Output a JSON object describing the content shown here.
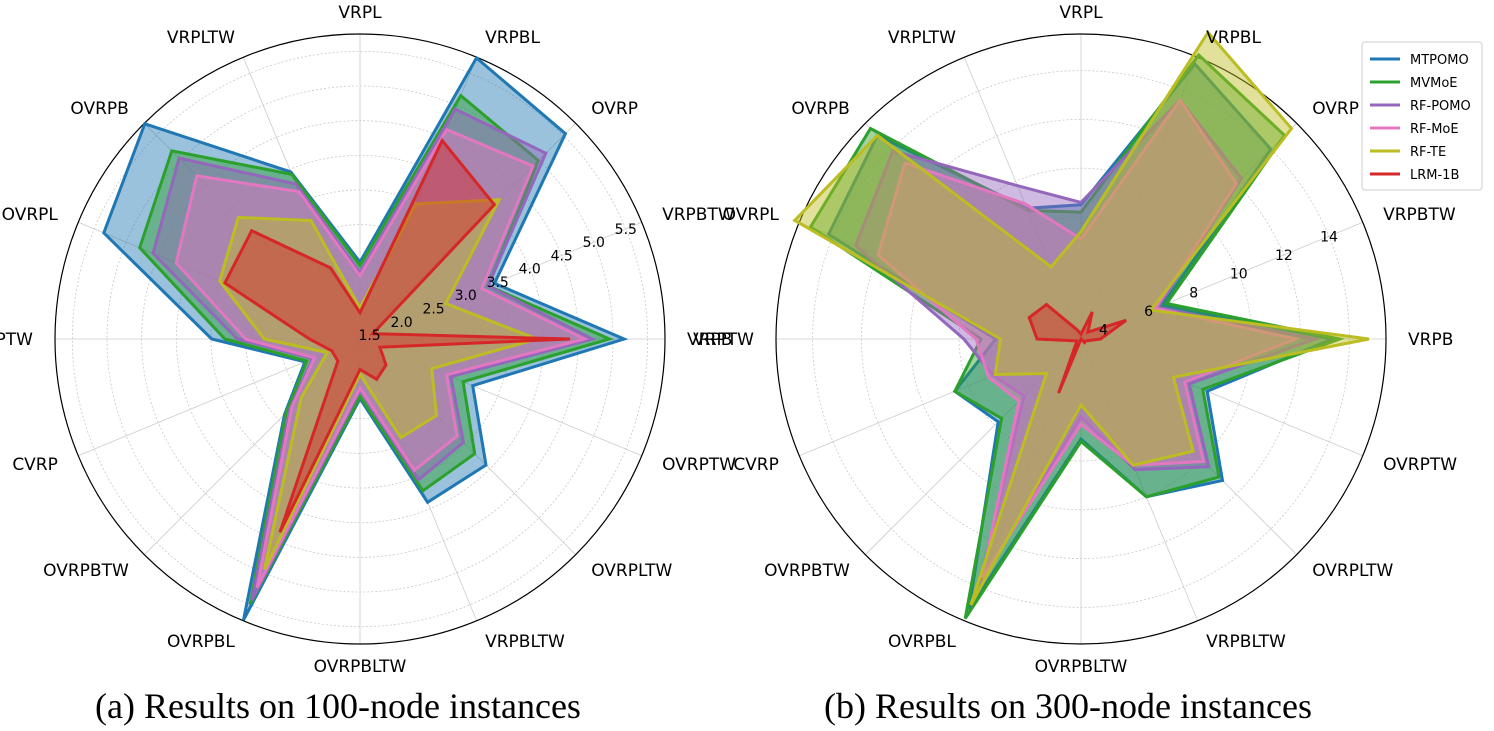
{
  "chart_data": [
    {
      "type": "radar",
      "caption": "(a) Results on 100-node instances",
      "categories": [
        "VRPB",
        "VRPBTW",
        "OVRP",
        "VRPBL",
        "VRPL",
        "VRPLTW",
        "OVRPB",
        "OVRPL",
        "VRPTW",
        "CVRP",
        "OVRPBTW",
        "OVRPBL",
        "OVRPBLTW",
        "VRPBLTW",
        "OVRPLTW",
        "OVRPTW"
      ],
      "radial_ticks": [
        1.5,
        2.0,
        2.5,
        3.0,
        3.5,
        4.0,
        4.5,
        5.0,
        5.5
      ],
      "radial_tick_labels": [
        "1.5",
        "2.0",
        "2.5",
        "3.0",
        "3.5",
        "4.0",
        "4.5",
        "5.0",
        "5.5"
      ],
      "rlim": [
        1.35,
        5.75
      ],
      "grid": true,
      "series": [
        {
          "name": "MTPOMO",
          "color": "#1f77b4",
          "values": [
            5.16,
            3.45,
            5.54,
            5.74,
            2.46,
            3.96,
            5.74,
            5.35,
            3.49,
            2.21,
            2.89,
            5.74,
            2.21,
            3.9,
            3.92,
            3.11
          ]
        },
        {
          "name": "MVMoE",
          "color": "#2ca02c",
          "values": [
            4.95,
            3.35,
            4.99,
            5.15,
            2.41,
            3.92,
            5.19,
            4.79,
            3.3,
            2.18,
            2.86,
            5.49,
            2.18,
            3.72,
            3.69,
            2.96
          ]
        },
        {
          "name": "RF-POMO",
          "color": "#9467bd",
          "values": [
            4.7,
            3.35,
            5.14,
            4.94,
            2.31,
            3.77,
            5.04,
            4.58,
            3.12,
            2.09,
            2.78,
            5.43,
            2.09,
            3.55,
            3.46,
            2.77
          ]
        },
        {
          "name": "RF-MoE",
          "color": "#e377c2",
          "values": [
            4.59,
            3.25,
            4.88,
            4.62,
            2.26,
            3.65,
            4.68,
            4.22,
            3.0,
            2.06,
            2.74,
            5.23,
            2.06,
            3.4,
            3.33,
            2.7
          ]
        },
        {
          "name": "RF-TE",
          "color": "#bcbd22",
          "values": [
            3.9,
            2.69,
            4.19,
            3.46,
            1.8,
            3.2,
            3.83,
            3.54,
            2.73,
            1.86,
            2.55,
            4.95,
            1.86,
            2.89,
            2.91,
            2.47
          ]
        },
        {
          "name": "LRM-1B",
          "color": "#d62728",
          "values": [
            4.38,
            1.55,
            4.09,
            4.45,
            1.73,
            2.46,
            3.56,
            3.46,
            2.08,
            1.79,
            1.8,
            4.37,
            1.79,
            1.98,
            1.88,
            1.66
          ]
        }
      ]
    },
    {
      "type": "radar",
      "caption": "(b) Results on 300-node instances",
      "categories": [
        "VRPB",
        "VRPBTW",
        "OVRP",
        "VRPBL",
        "VRPL",
        "VRPLTW",
        "OVRPB",
        "OVRPL",
        "VRPTW",
        "CVRP",
        "OVRPBTW",
        "OVRPBL",
        "OVRPBLTW",
        "VRPBLTW",
        "OVRPLTW",
        "OVRPTW"
      ],
      "radial_ticks": [
        4,
        6,
        8,
        10,
        12,
        14
      ],
      "radial_tick_labels": [
        "4",
        "6",
        "8",
        "10",
        "12",
        "14"
      ],
      "rlim": [
        3.0,
        15.5
      ],
      "grid": true,
      "legend_position": "top-right",
      "series": [
        {
          "name": "MTPOMO",
          "color": "#1f77b4",
          "values": [
            13.3,
            6.6,
            14.0,
            15.2,
            8.5,
            8.8,
            14.8,
            14.2,
            6.5,
            8.6,
            7.8,
            15.0,
            7.1,
            10.0,
            11.2,
            8.6
          ]
        },
        {
          "name": "MVMoE",
          "color": "#2ca02c",
          "values": [
            13.6,
            6.8,
            14.8,
            15.6,
            8.2,
            8.7,
            15.2,
            15.0,
            7.1,
            8.6,
            7.6,
            15.4,
            7.2,
            10.0,
            11.0,
            8.4
          ]
        },
        {
          "name": "RF-POMO",
          "color": "#9467bd",
          "values": [
            12.6,
            6.4,
            12.3,
            13.6,
            8.6,
            9.8,
            13.9,
            13.0,
            7.8,
            6.9,
            6.3,
            13.9,
            6.2,
            8.8,
            10.4,
            7.8
          ]
        },
        {
          "name": "RF-MoE",
          "color": "#e377c2",
          "values": [
            11.8,
            6.3,
            12.0,
            13.6,
            7.1,
            9.0,
            13.2,
            12.0,
            7.3,
            7.1,
            6.6,
            13.6,
            6.5,
            8.6,
            10.1,
            7.6
          ]
        },
        {
          "name": "RF-TE",
          "color": "#bcbd22",
          "values": [
            14.8,
            6.1,
            15.2,
            16.6,
            7.4,
            6.2,
            14.8,
            15.7,
            6.3,
            6.8,
            5.0,
            14.8,
            5.7,
            8.6,
            9.5,
            7.1
          ]
        },
        {
          "name": "LRM-1B",
          "color": "#d62728",
          "values": [
            3.8,
            5.0,
            3.4,
            4.2,
            3.2,
            3.4,
            5.0,
            5.3,
            4.8,
            3.2,
            3.3,
            5.4,
            2.6,
            2.9,
            3.2,
            3.2
          ]
        }
      ]
    }
  ]
}
